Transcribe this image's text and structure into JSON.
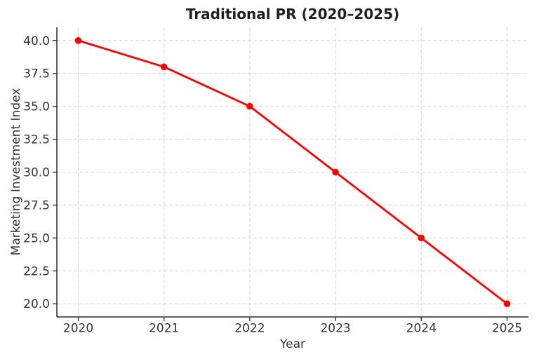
{
  "page": {
    "background_color": "#ffffff"
  },
  "chart_data": {
    "type": "line",
    "title": "Traditional PR (2020–2025)",
    "xlabel": "Year",
    "ylabel": "Marketing Investment Index",
    "x": [
      2020,
      2021,
      2022,
      2023,
      2024,
      2025
    ],
    "series": [
      {
        "name": "Traditional PR",
        "values": [
          40,
          38,
          35,
          30,
          25,
          20
        ],
        "color": "#ff0000",
        "marker": "circle",
        "line_width": 2.8,
        "marker_radius": 4.8
      }
    ],
    "xlim": [
      2019.75,
      2025.25
    ],
    "ylim": [
      19,
      41
    ],
    "xticks": [
      2020,
      2021,
      2022,
      2023,
      2024,
      2025
    ],
    "yticks": [
      20,
      22.5,
      25,
      27.5,
      30,
      32.5,
      35,
      37.5,
      40
    ],
    "ytick_decimals": 1,
    "grid": "on",
    "grid_style": "dashed",
    "grid_color": "#d9d9d9",
    "axis_color": "#2b2b2b",
    "text_color": "#333333",
    "legend": "none",
    "spines": [
      "left",
      "bottom"
    ]
  }
}
